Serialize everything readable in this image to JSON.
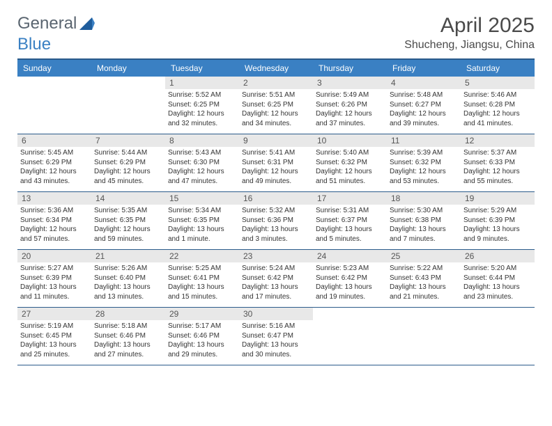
{
  "logo": {
    "text1": "General",
    "text2": "Blue"
  },
  "title": "April 2025",
  "location": "Shucheng, Jiangsu, China",
  "colors": {
    "header_bg": "#3a80c3",
    "header_text": "#ffffff",
    "divider": "#2a5a8a",
    "daynum_bg": "#e8e8e8",
    "text": "#333333",
    "title_color": "#4a4a4a"
  },
  "day_headers": [
    "Sunday",
    "Monday",
    "Tuesday",
    "Wednesday",
    "Thursday",
    "Friday",
    "Saturday"
  ],
  "weeks": [
    [
      null,
      null,
      {
        "n": "1",
        "sr": "Sunrise: 5:52 AM",
        "ss": "Sunset: 6:25 PM",
        "dl": "Daylight: 12 hours and 32 minutes."
      },
      {
        "n": "2",
        "sr": "Sunrise: 5:51 AM",
        "ss": "Sunset: 6:25 PM",
        "dl": "Daylight: 12 hours and 34 minutes."
      },
      {
        "n": "3",
        "sr": "Sunrise: 5:49 AM",
        "ss": "Sunset: 6:26 PM",
        "dl": "Daylight: 12 hours and 37 minutes."
      },
      {
        "n": "4",
        "sr": "Sunrise: 5:48 AM",
        "ss": "Sunset: 6:27 PM",
        "dl": "Daylight: 12 hours and 39 minutes."
      },
      {
        "n": "5",
        "sr": "Sunrise: 5:46 AM",
        "ss": "Sunset: 6:28 PM",
        "dl": "Daylight: 12 hours and 41 minutes."
      }
    ],
    [
      {
        "n": "6",
        "sr": "Sunrise: 5:45 AM",
        "ss": "Sunset: 6:29 PM",
        "dl": "Daylight: 12 hours and 43 minutes."
      },
      {
        "n": "7",
        "sr": "Sunrise: 5:44 AM",
        "ss": "Sunset: 6:29 PM",
        "dl": "Daylight: 12 hours and 45 minutes."
      },
      {
        "n": "8",
        "sr": "Sunrise: 5:43 AM",
        "ss": "Sunset: 6:30 PM",
        "dl": "Daylight: 12 hours and 47 minutes."
      },
      {
        "n": "9",
        "sr": "Sunrise: 5:41 AM",
        "ss": "Sunset: 6:31 PM",
        "dl": "Daylight: 12 hours and 49 minutes."
      },
      {
        "n": "10",
        "sr": "Sunrise: 5:40 AM",
        "ss": "Sunset: 6:32 PM",
        "dl": "Daylight: 12 hours and 51 minutes."
      },
      {
        "n": "11",
        "sr": "Sunrise: 5:39 AM",
        "ss": "Sunset: 6:32 PM",
        "dl": "Daylight: 12 hours and 53 minutes."
      },
      {
        "n": "12",
        "sr": "Sunrise: 5:37 AM",
        "ss": "Sunset: 6:33 PM",
        "dl": "Daylight: 12 hours and 55 minutes."
      }
    ],
    [
      {
        "n": "13",
        "sr": "Sunrise: 5:36 AM",
        "ss": "Sunset: 6:34 PM",
        "dl": "Daylight: 12 hours and 57 minutes."
      },
      {
        "n": "14",
        "sr": "Sunrise: 5:35 AM",
        "ss": "Sunset: 6:35 PM",
        "dl": "Daylight: 12 hours and 59 minutes."
      },
      {
        "n": "15",
        "sr": "Sunrise: 5:34 AM",
        "ss": "Sunset: 6:35 PM",
        "dl": "Daylight: 13 hours and 1 minute."
      },
      {
        "n": "16",
        "sr": "Sunrise: 5:32 AM",
        "ss": "Sunset: 6:36 PM",
        "dl": "Daylight: 13 hours and 3 minutes."
      },
      {
        "n": "17",
        "sr": "Sunrise: 5:31 AM",
        "ss": "Sunset: 6:37 PM",
        "dl": "Daylight: 13 hours and 5 minutes."
      },
      {
        "n": "18",
        "sr": "Sunrise: 5:30 AM",
        "ss": "Sunset: 6:38 PM",
        "dl": "Daylight: 13 hours and 7 minutes."
      },
      {
        "n": "19",
        "sr": "Sunrise: 5:29 AM",
        "ss": "Sunset: 6:39 PM",
        "dl": "Daylight: 13 hours and 9 minutes."
      }
    ],
    [
      {
        "n": "20",
        "sr": "Sunrise: 5:27 AM",
        "ss": "Sunset: 6:39 PM",
        "dl": "Daylight: 13 hours and 11 minutes."
      },
      {
        "n": "21",
        "sr": "Sunrise: 5:26 AM",
        "ss": "Sunset: 6:40 PM",
        "dl": "Daylight: 13 hours and 13 minutes."
      },
      {
        "n": "22",
        "sr": "Sunrise: 5:25 AM",
        "ss": "Sunset: 6:41 PM",
        "dl": "Daylight: 13 hours and 15 minutes."
      },
      {
        "n": "23",
        "sr": "Sunrise: 5:24 AM",
        "ss": "Sunset: 6:42 PM",
        "dl": "Daylight: 13 hours and 17 minutes."
      },
      {
        "n": "24",
        "sr": "Sunrise: 5:23 AM",
        "ss": "Sunset: 6:42 PM",
        "dl": "Daylight: 13 hours and 19 minutes."
      },
      {
        "n": "25",
        "sr": "Sunrise: 5:22 AM",
        "ss": "Sunset: 6:43 PM",
        "dl": "Daylight: 13 hours and 21 minutes."
      },
      {
        "n": "26",
        "sr": "Sunrise: 5:20 AM",
        "ss": "Sunset: 6:44 PM",
        "dl": "Daylight: 13 hours and 23 minutes."
      }
    ],
    [
      {
        "n": "27",
        "sr": "Sunrise: 5:19 AM",
        "ss": "Sunset: 6:45 PM",
        "dl": "Daylight: 13 hours and 25 minutes."
      },
      {
        "n": "28",
        "sr": "Sunrise: 5:18 AM",
        "ss": "Sunset: 6:46 PM",
        "dl": "Daylight: 13 hours and 27 minutes."
      },
      {
        "n": "29",
        "sr": "Sunrise: 5:17 AM",
        "ss": "Sunset: 6:46 PM",
        "dl": "Daylight: 13 hours and 29 minutes."
      },
      {
        "n": "30",
        "sr": "Sunrise: 5:16 AM",
        "ss": "Sunset: 6:47 PM",
        "dl": "Daylight: 13 hours and 30 minutes."
      },
      null,
      null,
      null
    ]
  ]
}
